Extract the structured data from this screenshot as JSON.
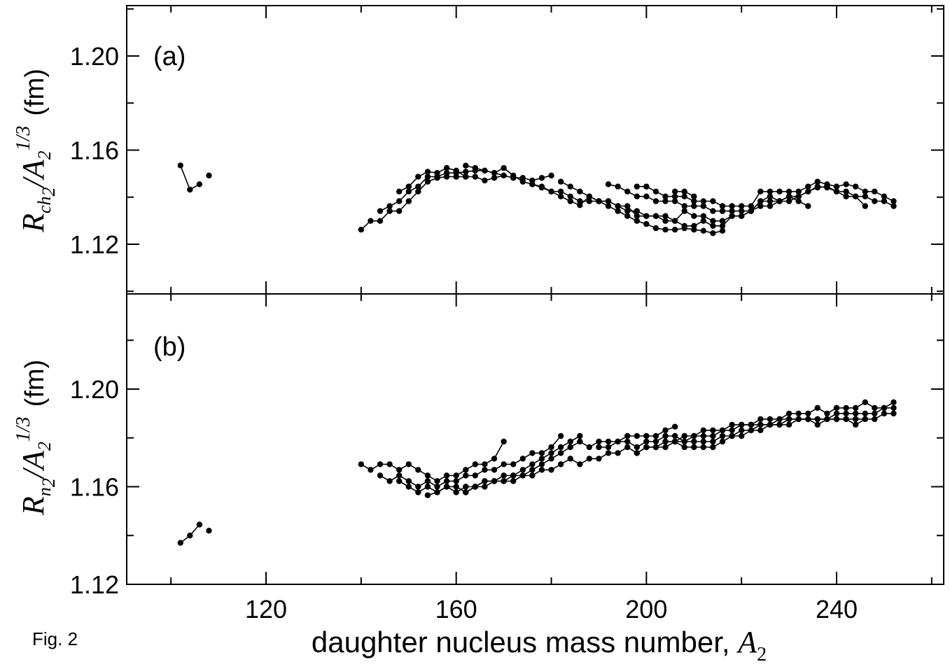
{
  "figure_caption": "Fig. 2",
  "x_axis": {
    "label_text": "daughter nucleus mass number, ",
    "label_var": "A",
    "label_sub": "2"
  },
  "chart_data": [
    {
      "type": "line",
      "panel_label": "(a)",
      "ylabel": {
        "main": "R",
        "sub": "ch",
        "sub2": "2",
        "denom": "/A",
        "denom_sub": "2",
        "sup": "1/3",
        "unit": "(fm)"
      },
      "xlim": [
        90,
        265
      ],
      "ylim": [
        1.1,
        1.22
      ],
      "xticks": [
        120,
        160,
        200,
        240
      ],
      "yticks": [
        1.12,
        1.16,
        1.2
      ],
      "ytick_labels": [
        "1.12",
        "1.16",
        "1.20"
      ],
      "series": [
        {
          "x": [
            102,
            104,
            106
          ],
          "y": [
            1.1535,
            1.1432,
            1.1455
          ]
        },
        {
          "x": [
            108
          ],
          "y": [
            1.1492
          ]
        },
        {
          "x": [
            140,
            142,
            144,
            146,
            148,
            150,
            152,
            154,
            156,
            158,
            160,
            162
          ],
          "y": [
            1.1262,
            1.1299,
            1.1299,
            1.1341,
            1.1341,
            1.1383,
            1.1424,
            1.1466,
            1.1482,
            1.1487,
            1.1487,
            1.1487
          ]
        },
        {
          "x": [
            144,
            146,
            148,
            150,
            152,
            154,
            156,
            158,
            160,
            162,
            164,
            166,
            168,
            170
          ],
          "y": [
            1.1341,
            1.1362,
            1.1383,
            1.1424,
            1.1445,
            1.1487,
            1.1487,
            1.1503,
            1.1503,
            1.1508,
            1.1513,
            1.1513,
            1.1503,
            1.1492
          ]
        },
        {
          "x": [
            148,
            150,
            152,
            154,
            156,
            158,
            160,
            162,
            164,
            166,
            168,
            170,
            172,
            174,
            176,
            178,
            180
          ],
          "y": [
            1.1424,
            1.1445,
            1.1487,
            1.1508,
            1.1503,
            1.1524,
            1.1513,
            1.1487,
            1.1487,
            1.1471,
            1.1482,
            1.1492,
            1.1482,
            1.1482,
            1.1471,
            1.1482,
            1.1492
          ]
        },
        {
          "x": [
            162,
            164,
            166,
            168,
            170,
            172,
            174,
            176,
            178,
            180,
            182,
            184,
            186,
            188,
            190,
            192,
            194,
            196,
            198,
            200,
            202,
            204,
            206,
            208,
            210,
            212,
            214,
            216
          ],
          "y": [
            1.1534,
            1.1524,
            1.1513,
            1.1503,
            1.1524,
            1.1492,
            1.1466,
            1.1455,
            1.1441,
            1.1424,
            1.1403,
            1.1383,
            1.1366,
            1.1403,
            1.1383,
            1.1362,
            1.1341,
            1.132,
            1.1299,
            1.1286,
            1.1268,
            1.1262,
            1.1262,
            1.1268,
            1.1262,
            1.1257,
            1.1247,
            1.1257
          ]
        },
        {
          "x": [
            176,
            178,
            180,
            182,
            184,
            186,
            188,
            190,
            192,
            194,
            196,
            198,
            200,
            202,
            204,
            206,
            208,
            210,
            212,
            214,
            216,
            218,
            220,
            222,
            224,
            226,
            228,
            230,
            232,
            234
          ],
          "y": [
            1.1455,
            1.1445,
            1.1424,
            1.1424,
            1.1403,
            1.1383,
            1.1383,
            1.1383,
            1.1383,
            1.1362,
            1.1362,
            1.132,
            1.132,
            1.132,
            1.1299,
            1.1299,
            1.1278,
            1.1278,
            1.1299,
            1.1278,
            1.1278,
            1.132,
            1.132,
            1.1341,
            1.1383,
            1.1403,
            1.1383,
            1.1403,
            1.1383,
            1.1362
          ]
        },
        {
          "x": [
            182,
            184,
            186,
            188,
            190,
            192,
            194,
            196,
            198,
            200,
            202,
            204,
            206,
            208,
            210,
            212,
            214,
            216,
            218,
            220,
            222,
            224,
            226,
            228,
            230,
            232,
            234,
            236,
            238,
            240,
            242,
            244,
            246
          ],
          "y": [
            1.1466,
            1.1445,
            1.1424,
            1.1403,
            1.1383,
            1.1383,
            1.1362,
            1.1341,
            1.1341,
            1.132,
            1.132,
            1.132,
            1.1299,
            1.1341,
            1.132,
            1.132,
            1.1299,
            1.1299,
            1.132,
            1.132,
            1.1341,
            1.1362,
            1.1362,
            1.1383,
            1.1383,
            1.1403,
            1.1424,
            1.1441,
            1.1445,
            1.1424,
            1.1424,
            1.1403,
            1.1362
          ]
        },
        {
          "x": [
            192,
            194,
            196,
            198,
            200,
            202,
            204,
            206,
            208,
            210,
            212,
            214,
            216,
            218,
            220,
            222,
            224,
            226,
            228,
            230,
            232,
            234,
            236,
            238,
            240,
            242,
            244,
            246,
            248,
            250,
            252
          ],
          "y": [
            1.1455,
            1.1445,
            1.1424,
            1.1403,
            1.1403,
            1.1383,
            1.1383,
            1.1383,
            1.1362,
            1.1362,
            1.1362,
            1.1341,
            1.1341,
            1.1341,
            1.1341,
            1.1341,
            1.1383,
            1.1383,
            1.1383,
            1.1403,
            1.1403,
            1.1424,
            1.1445,
            1.1441,
            1.1424,
            1.1403,
            1.1403,
            1.1403,
            1.1383,
            1.1383,
            1.1362
          ]
        },
        {
          "x": [
            198,
            200,
            202,
            204,
            206,
            208,
            210,
            212,
            214,
            216,
            218,
            220,
            222,
            224,
            226,
            228,
            230,
            232,
            234,
            236,
            238,
            240,
            242,
            244,
            246,
            248,
            250,
            252
          ],
          "y": [
            1.1445,
            1.1445,
            1.1424,
            1.1403,
            1.1403,
            1.1403,
            1.1383,
            1.1383,
            1.1383,
            1.1362,
            1.1362,
            1.1362,
            1.1362,
            1.1424,
            1.1424,
            1.1424,
            1.1424,
            1.1424,
            1.1445,
            1.1466,
            1.1455,
            1.1445,
            1.1455,
            1.1445,
            1.1424,
            1.1424,
            1.1403,
            1.1383
          ]
        },
        {
          "x": [
            206,
            208,
            210
          ],
          "y": [
            1.1424,
            1.1424,
            1.1403
          ]
        }
      ]
    },
    {
      "type": "line",
      "panel_label": "(b)",
      "ylabel": {
        "main": "R",
        "sub": "n",
        "sub2": "2",
        "denom": "/A",
        "denom_sub": "2",
        "sup": "1/3",
        "unit": "(fm)"
      },
      "xlim": [
        90,
        265
      ],
      "ylim": [
        1.12,
        1.238
      ],
      "xticks": [
        120,
        160,
        200,
        240
      ],
      "yticks": [
        1.12,
        1.16,
        1.2
      ],
      "ytick_labels": [
        "1.12",
        "1.16",
        "1.20"
      ],
      "series": [
        {
          "x": [
            102,
            104,
            106
          ],
          "y": [
            1.137,
            1.14,
            1.1445
          ]
        },
        {
          "x": [
            108
          ],
          "y": [
            1.142
          ]
        },
        {
          "x": [
            140,
            142,
            144,
            146,
            148,
            150,
            152,
            154,
            156,
            158,
            160,
            162,
            164,
            166,
            168,
            170
          ],
          "y": [
            1.1692,
            1.1669,
            1.1692,
            1.1692,
            1.1669,
            1.1692,
            1.1669,
            1.1646,
            1.1623,
            1.1646,
            1.1646,
            1.1669,
            1.1692,
            1.1692,
            1.1715,
            1.1785
          ]
        },
        {
          "x": [
            144,
            146,
            148,
            150,
            152,
            154,
            156,
            158,
            160,
            162,
            164,
            166,
            168,
            170,
            172,
            174,
            176,
            178,
            180,
            182
          ],
          "y": [
            1.1646,
            1.1623,
            1.1646,
            1.1623,
            1.16,
            1.1623,
            1.16,
            1.1623,
            1.1623,
            1.1646,
            1.1646,
            1.1669,
            1.1669,
            1.1692,
            1.1692,
            1.1715,
            1.1738,
            1.1738,
            1.1762,
            1.1808
          ]
        },
        {
          "x": [
            148,
            150,
            152,
            154,
            156,
            158,
            160,
            162,
            164,
            166,
            168,
            170,
            172,
            174,
            176,
            178,
            180,
            182,
            184,
            186
          ],
          "y": [
            1.1623,
            1.16,
            1.1577,
            1.16,
            1.1577,
            1.16,
            1.1577,
            1.16,
            1.16,
            1.1623,
            1.1623,
            1.1646,
            1.1646,
            1.1669,
            1.1692,
            1.1715,
            1.1738,
            1.1762,
            1.1785,
            1.1808
          ]
        },
        {
          "x": [
            154,
            156,
            158,
            160,
            162,
            164,
            166,
            168,
            170,
            172,
            174,
            176,
            178,
            180,
            182,
            184,
            186,
            188,
            190,
            192,
            194,
            196,
            198,
            200,
            202,
            204,
            206
          ],
          "y": [
            1.1565,
            1.1577,
            1.16,
            1.16,
            1.1577,
            1.16,
            1.1623,
            1.1623,
            1.1623,
            1.1646,
            1.1646,
            1.1669,
            1.1692,
            1.1715,
            1.1738,
            1.1762,
            1.1785,
            1.1762,
            1.1785,
            1.1785,
            1.1785,
            1.1808,
            1.1808,
            1.1808,
            1.1808,
            1.1831,
            1.1846
          ]
        },
        {
          "x": [
            162,
            164,
            166,
            168,
            170,
            172,
            174,
            176,
            178,
            180,
            182,
            184,
            186,
            188,
            190,
            192,
            194,
            196,
            198,
            200,
            202,
            204,
            206,
            208,
            210,
            212,
            214,
            216,
            218,
            220,
            222,
            224,
            226,
            228,
            230,
            232,
            234,
            236,
            238,
            240,
            242,
            244,
            246,
            248,
            250,
            252
          ],
          "y": [
            1.1577,
            1.16,
            1.16,
            1.1623,
            1.1623,
            1.1623,
            1.1646,
            1.1646,
            1.1669,
            1.1669,
            1.1692,
            1.1715,
            1.1692,
            1.1715,
            1.1715,
            1.1738,
            1.1738,
            1.1762,
            1.1738,
            1.1762,
            1.1762,
            1.1785,
            1.1785,
            1.1808,
            1.1808,
            1.1831,
            1.1831,
            1.1831,
            1.1854,
            1.1854,
            1.1854,
            1.1877,
            1.1877,
            1.1877,
            1.19,
            1.19,
            1.19,
            1.1923,
            1.19,
            1.1923,
            1.1923,
            1.1923,
            1.1946,
            1.1923,
            1.1923,
            1.1946
          ]
        },
        {
          "x": [
            190,
            192,
            194,
            196,
            198,
            200,
            202,
            204,
            206,
            208,
            210,
            212,
            214,
            216,
            218,
            220,
            222,
            224,
            226,
            228,
            230,
            232,
            234,
            236,
            238,
            240,
            242,
            244,
            246,
            248,
            250,
            252
          ],
          "y": [
            1.1762,
            1.1762,
            1.1785,
            1.1785,
            1.1762,
            1.1785,
            1.1785,
            1.1808,
            1.1808,
            1.1785,
            1.1808,
            1.1808,
            1.1808,
            1.1831,
            1.1831,
            1.1854,
            1.1854,
            1.1854,
            1.1854,
            1.1877,
            1.1877,
            1.1877,
            1.1877,
            1.1877,
            1.1877,
            1.19,
            1.19,
            1.19,
            1.19,
            1.19,
            1.1923,
            1.1923
          ]
        },
        {
          "x": [
            198,
            200,
            202,
            204,
            206,
            208,
            210,
            212,
            214,
            216,
            218,
            220,
            222,
            224,
            226,
            228,
            230,
            232,
            234,
            236,
            238,
            240,
            242,
            244,
            246,
            248,
            250,
            252
          ],
          "y": [
            1.1738,
            1.1762,
            1.1762,
            1.1762,
            1.1785,
            1.1785,
            1.1785,
            1.1785,
            1.1785,
            1.1808,
            1.1808,
            1.1831,
            1.1831,
            1.1854,
            1.1854,
            1.1854,
            1.1877,
            1.1877,
            1.1877,
            1.1854,
            1.1877,
            1.1877,
            1.1877,
            1.1854,
            1.1877,
            1.1877,
            1.19,
            1.19
          ]
        },
        {
          "x": [
            204,
            206,
            208,
            210,
            212,
            214,
            216,
            218,
            220,
            222,
            224,
            226,
            228,
            230,
            232,
            234,
            236,
            238,
            240,
            242,
            244,
            246
          ],
          "y": [
            1.1785,
            1.1785,
            1.1762,
            1.1762,
            1.1762,
            1.1762,
            1.1785,
            1.1808,
            1.1808,
            1.1831,
            1.1831,
            1.1854,
            1.1854,
            1.1854,
            1.1877,
            1.1877,
            1.1877,
            1.1877,
            1.1877,
            1.1877,
            1.1877,
            1.1877
          ]
        }
      ]
    }
  ]
}
